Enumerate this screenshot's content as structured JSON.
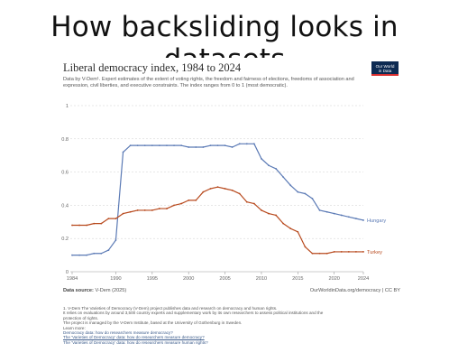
{
  "slide_title": "How backsliding looks in datasets",
  "logo": {
    "line1": "Our World",
    "line2": "in Data"
  },
  "chart_data": {
    "type": "line",
    "title": "Liberal democracy index, 1984 to 2024",
    "subtitle": "Data by V-Dem¹. Expert estimates of the extent of voting rights, the freedom and fairness of elections, freedoms of association and expression, civil liberties, and executive constraints. The index ranges from 0 to 1 (most democratic).",
    "ylim": [
      0,
      1
    ],
    "y_ticks": [
      "0",
      "0.2",
      "0.4",
      "0.6",
      "0.8",
      "1"
    ],
    "y_tick_values": [
      0,
      0.2,
      0.4,
      0.6,
      0.8,
      1
    ],
    "x_ticks": [
      "1984",
      "1990",
      "1995",
      "2000",
      "2005",
      "2010",
      "2015",
      "2020",
      "2024"
    ],
    "x_tick_values": [
      1984,
      1990,
      1995,
      2000,
      2005,
      2010,
      2015,
      2020,
      2024
    ],
    "grid": true,
    "series": [
      {
        "name": "Hungary",
        "color": "#5b7ab5",
        "x": [
          1984,
          1985,
          1986,
          1987,
          1988,
          1989,
          1990,
          1991,
          1992,
          1993,
          1994,
          1995,
          1996,
          1997,
          1998,
          1999,
          2000,
          2001,
          2002,
          2003,
          2004,
          2005,
          2006,
          2007,
          2008,
          2009,
          2010,
          2011,
          2012,
          2013,
          2014,
          2015,
          2016,
          2017,
          2018,
          2019,
          2020,
          2021,
          2022,
          2023,
          2024
        ],
        "values": [
          0.1,
          0.1,
          0.1,
          0.11,
          0.11,
          0.13,
          0.19,
          0.72,
          0.76,
          0.76,
          0.76,
          0.76,
          0.76,
          0.76,
          0.76,
          0.76,
          0.75,
          0.75,
          0.75,
          0.76,
          0.76,
          0.76,
          0.75,
          0.77,
          0.77,
          0.77,
          0.68,
          0.64,
          0.62,
          0.57,
          0.52,
          0.48,
          0.47,
          0.44,
          0.37,
          0.36,
          0.35,
          0.34,
          0.33,
          0.32,
          0.31
        ]
      },
      {
        "name": "Turkey",
        "color": "#b84a1e",
        "x": [
          1984,
          1985,
          1986,
          1987,
          1988,
          1989,
          1990,
          1991,
          1992,
          1993,
          1994,
          1995,
          1996,
          1997,
          1998,
          1999,
          2000,
          2001,
          2002,
          2003,
          2004,
          2005,
          2006,
          2007,
          2008,
          2009,
          2010,
          2011,
          2012,
          2013,
          2014,
          2015,
          2016,
          2017,
          2018,
          2019,
          2020,
          2021,
          2022,
          2023,
          2024
        ],
        "values": [
          0.28,
          0.28,
          0.28,
          0.29,
          0.29,
          0.32,
          0.32,
          0.35,
          0.36,
          0.37,
          0.37,
          0.37,
          0.38,
          0.38,
          0.4,
          0.41,
          0.43,
          0.43,
          0.48,
          0.5,
          0.51,
          0.5,
          0.49,
          0.47,
          0.42,
          0.41,
          0.37,
          0.35,
          0.34,
          0.29,
          0.26,
          0.24,
          0.15,
          0.11,
          0.11,
          0.11,
          0.12,
          0.12,
          0.12,
          0.12,
          0.12
        ]
      }
    ]
  },
  "source": {
    "label": "Data source:",
    "text": "V-Dem (2025)"
  },
  "owid_url": "OurWorldinData.org/democracy | CC BY",
  "footnotes": [
    "1. V-Dem The Varieties of Democracy (V-Dem) project publishes data and research on democracy and human rights.",
    "It relies on evaluations by around 3,500 country experts and supplementary work by its own researchers to assess political institutions and the",
    "protection of rights.",
    "The project is managed by the V-Dem Institute, based at the University of Gothenburg in Sweden.",
    "Learn more:"
  ],
  "footnote_links": [
    "Democracy data: how do researchers measure democracy?",
    "The 'Varieties of Democracy' data: how do researchers measure democracy?",
    "The 'Varieties of Democracy' data: how do researchers measure human rights?"
  ]
}
